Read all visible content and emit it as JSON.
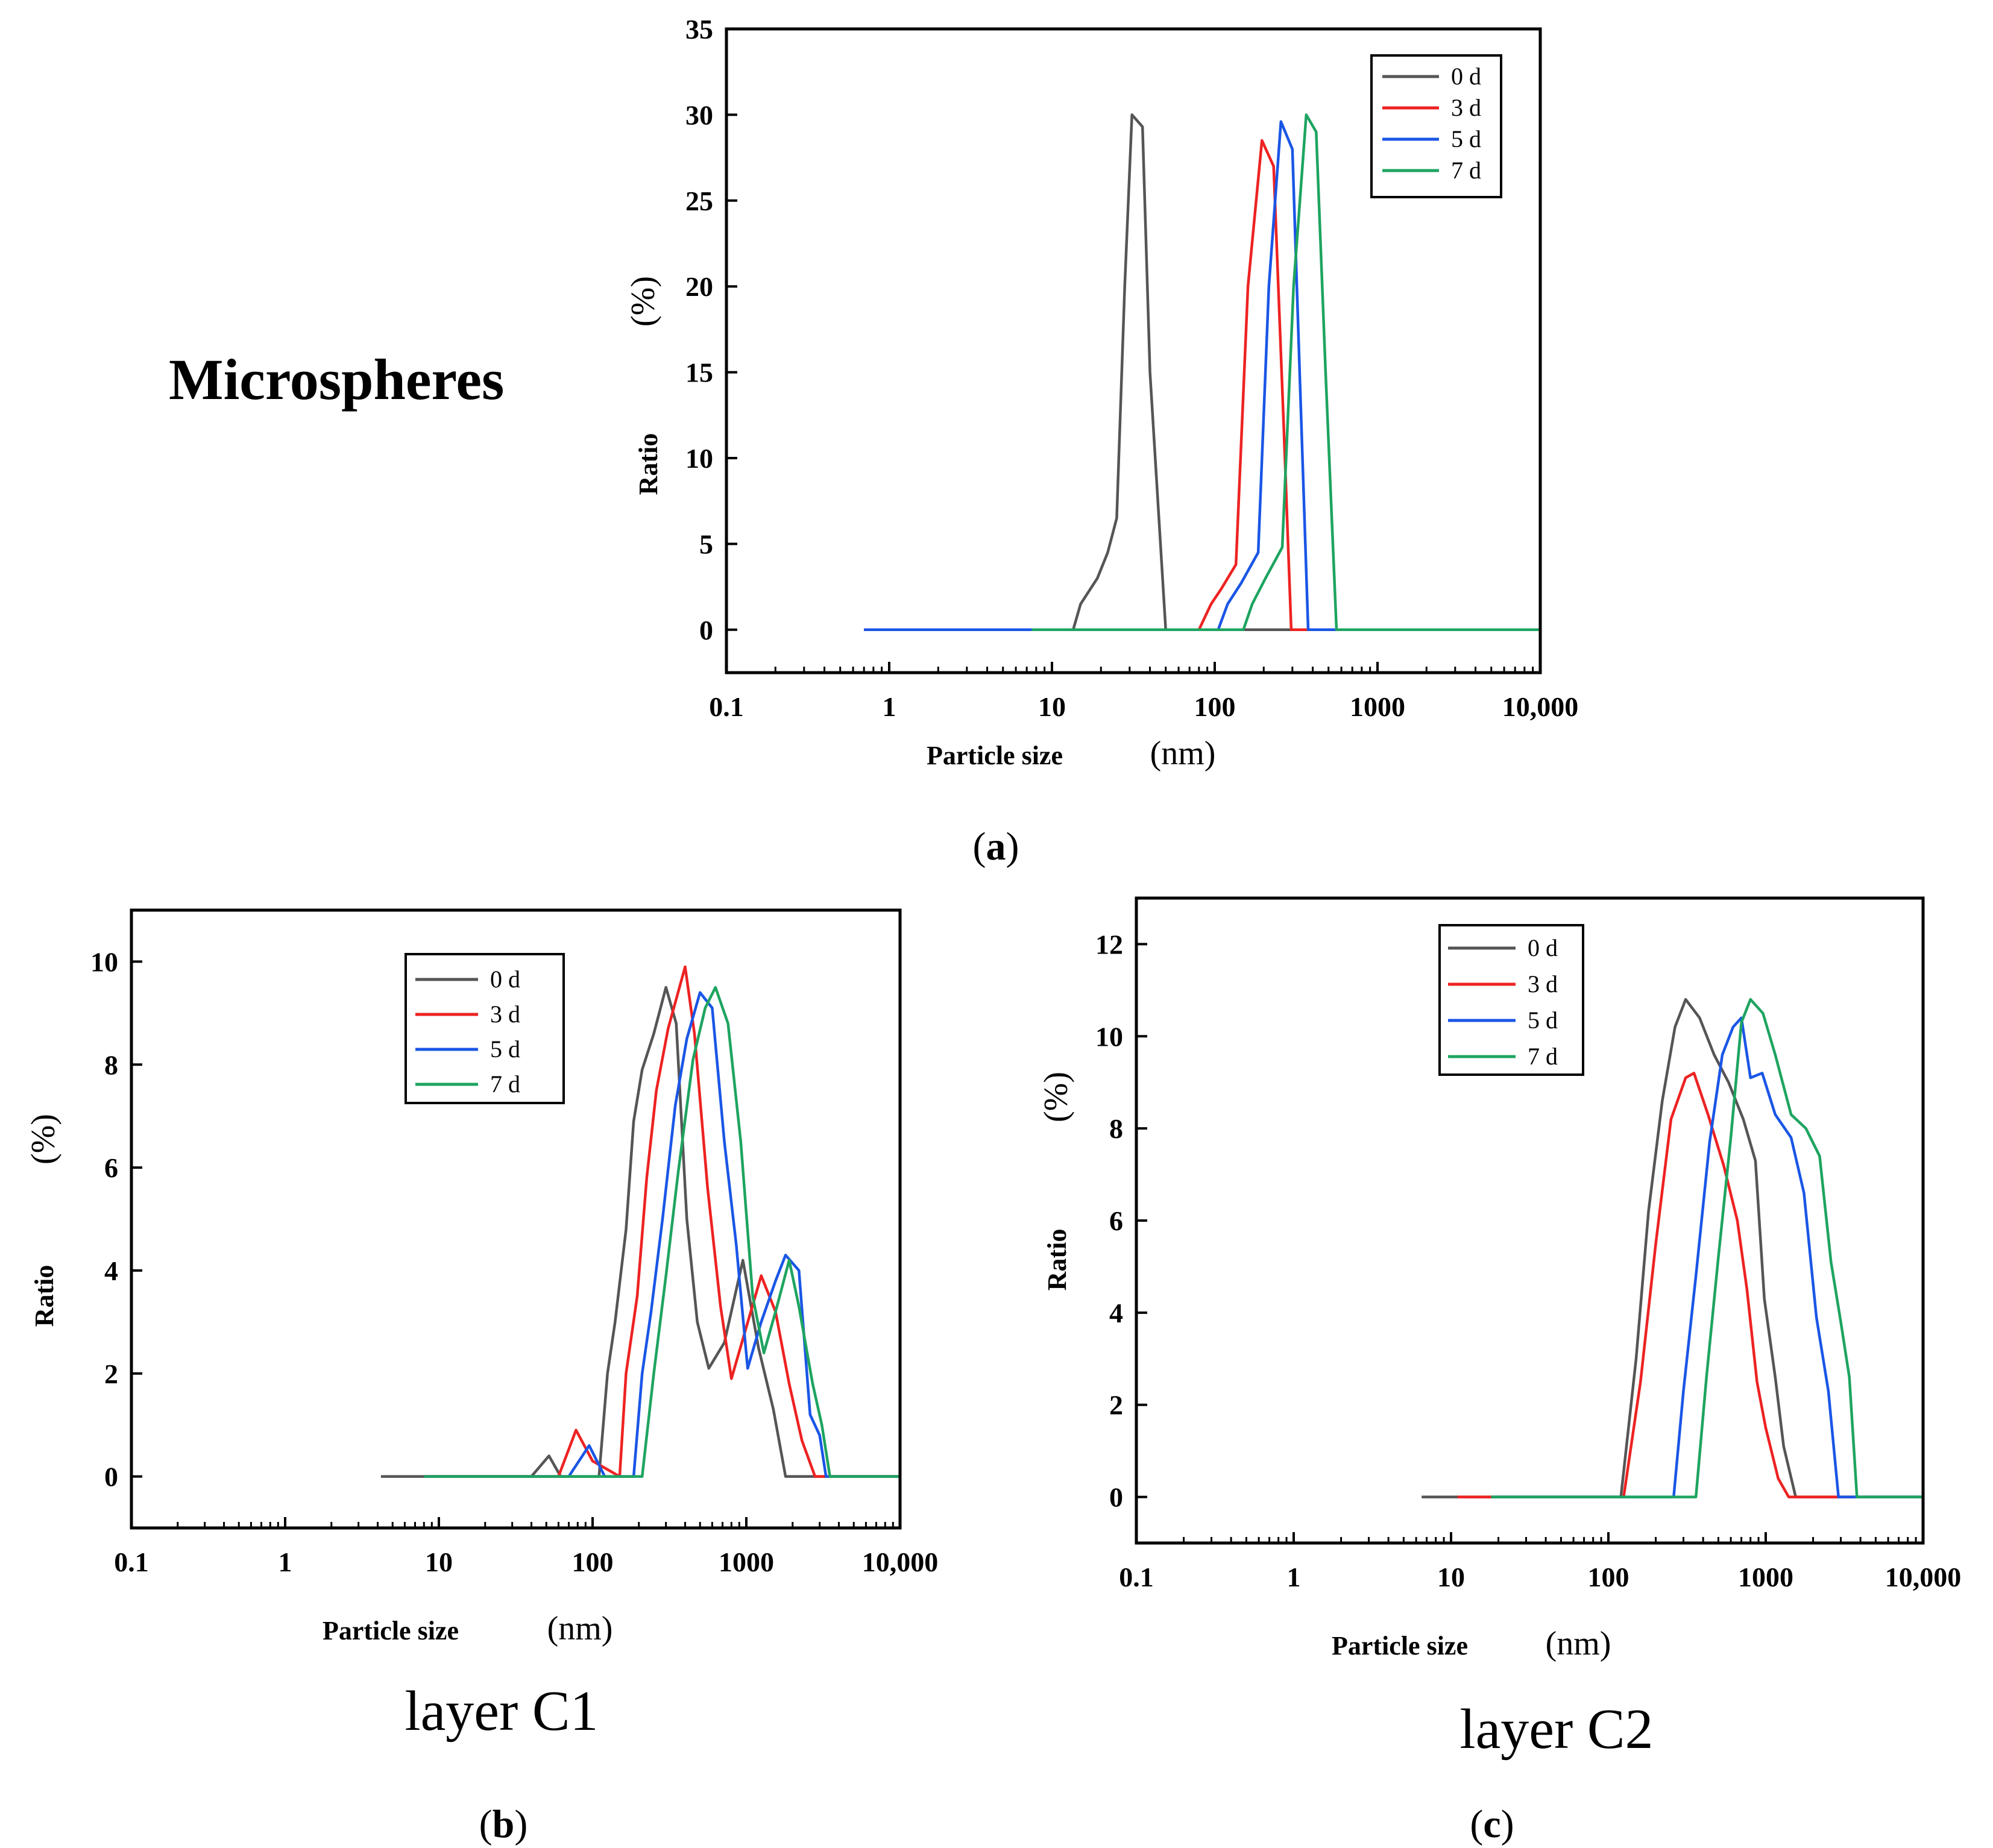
{
  "chart_data": [
    {
      "id": "a",
      "type": "line",
      "title": "Microspheres",
      "caption": "a",
      "xlabel": "Particle size",
      "xunit": "(nm)",
      "ylabel": "Ratio",
      "yunit": "(%)",
      "xscale": "log",
      "xlim": [
        0.1,
        10000
      ],
      "ylim": [
        -2.5,
        35
      ],
      "x_ticks": [
        0.1,
        1,
        10,
        100,
        1000,
        10000
      ],
      "x_tick_labels": [
        "0.1",
        "1",
        "10",
        "100",
        "1000",
        "10,000"
      ],
      "y_ticks": [
        0,
        5,
        10,
        15,
        20,
        25,
        30,
        35
      ],
      "y_tick_labels": [
        "0",
        "5",
        "10",
        "15",
        "20",
        "25",
        "30",
        "35"
      ],
      "legend_position": "top-right",
      "series": [
        {
          "name": "0 d",
          "color": "#555555",
          "points": [
            [
              0.7,
              0
            ],
            [
              13.5,
              0
            ],
            [
              15,
              1.5
            ],
            [
              19,
              3
            ],
            [
              22,
              4.5
            ],
            [
              25,
              6.5
            ],
            [
              28,
              20
            ],
            [
              31,
              30
            ],
            [
              36,
              29.3
            ],
            [
              40,
              15
            ],
            [
              50,
              0
            ],
            [
              10000,
              0
            ]
          ]
        },
        {
          "name": "3 d",
          "color": "#ee2222",
          "points": [
            [
              0.7,
              0
            ],
            [
              80,
              0
            ],
            [
              95,
              1.5
            ],
            [
              110,
              2.4
            ],
            [
              135,
              3.8
            ],
            [
              160,
              20
            ],
            [
              195,
              28.5
            ],
            [
              230,
              27
            ],
            [
              265,
              12
            ],
            [
              295,
              0
            ],
            [
              10000,
              0
            ]
          ]
        },
        {
          "name": "5 d",
          "color": "#1a56e6",
          "points": [
            [
              0.7,
              0
            ],
            [
              105,
              0
            ],
            [
              120,
              1.5
            ],
            [
              145,
              2.7
            ],
            [
              185,
              4.5
            ],
            [
              215,
              20
            ],
            [
              255,
              29.6
            ],
            [
              300,
              28
            ],
            [
              335,
              14
            ],
            [
              375,
              0
            ],
            [
              10000,
              0
            ]
          ]
        },
        {
          "name": "7 d",
          "color": "#1ea460",
          "points": [
            [
              7.5,
              0
            ],
            [
              150,
              0
            ],
            [
              170,
              1.5
            ],
            [
              205,
              3
            ],
            [
              260,
              4.8
            ],
            [
              305,
              20
            ],
            [
              365,
              30
            ],
            [
              420,
              29
            ],
            [
              480,
              15
            ],
            [
              560,
              0
            ],
            [
              10000,
              0
            ]
          ]
        }
      ]
    },
    {
      "id": "b",
      "type": "line",
      "title": "layer C1",
      "caption": "b",
      "xlabel": "Particle size",
      "xunit": "(nm)",
      "ylabel": "Ratio",
      "yunit": "(%)",
      "xscale": "log",
      "xlim": [
        0.1,
        10000
      ],
      "ylim": [
        -1,
        11
      ],
      "x_ticks": [
        0.1,
        1,
        10,
        100,
        1000,
        10000
      ],
      "x_tick_labels": [
        "0.1",
        "1",
        "10",
        "100",
        "1000",
        "10,000"
      ],
      "y_ticks": [
        0,
        2,
        4,
        6,
        8,
        10
      ],
      "y_tick_labels": [
        "0",
        "2",
        "4",
        "6",
        "8",
        "10"
      ],
      "legend_position": "top-center",
      "series": [
        {
          "name": "0 d",
          "color": "#555555",
          "points": [
            [
              4.2,
              0
            ],
            [
              40,
              0
            ],
            [
              52,
              0.4
            ],
            [
              62,
              0
            ],
            [
              110,
              0
            ],
            [
              125,
              2
            ],
            [
              140,
              3
            ],
            [
              165,
              4.8
            ],
            [
              185,
              6.9
            ],
            [
              210,
              7.9
            ],
            [
              250,
              8.6
            ],
            [
              300,
              9.5
            ],
            [
              350,
              8.8
            ],
            [
              410,
              5
            ],
            [
              480,
              3
            ],
            [
              570,
              2.1
            ],
            [
              720,
              2.6
            ],
            [
              950,
              4.2
            ],
            [
              1200,
              2.5
            ],
            [
              1500,
              1.3
            ],
            [
              1800,
              0
            ],
            [
              10000,
              0
            ]
          ]
        },
        {
          "name": "3 d",
          "color": "#ee2222",
          "points": [
            [
              8,
              0
            ],
            [
              60,
              0
            ],
            [
              78,
              0.9
            ],
            [
              100,
              0.3
            ],
            [
              150,
              0
            ],
            [
              165,
              2
            ],
            [
              195,
              3.5
            ],
            [
              225,
              5.8
            ],
            [
              260,
              7.5
            ],
            [
              310,
              8.7
            ],
            [
              400,
              9.9
            ],
            [
              460,
              8.6
            ],
            [
              560,
              5.6
            ],
            [
              680,
              3.3
            ],
            [
              800,
              1.9
            ],
            [
              1000,
              2.9
            ],
            [
              1250,
              3.9
            ],
            [
              1550,
              3.2
            ],
            [
              1900,
              1.8
            ],
            [
              2300,
              0.7
            ],
            [
              2800,
              0
            ],
            [
              10000,
              0
            ]
          ]
        },
        {
          "name": "5 d",
          "color": "#1a56e6",
          "points": [
            [
              8,
              0
            ],
            [
              70,
              0
            ],
            [
              95,
              0.6
            ],
            [
              120,
              0
            ],
            [
              185,
              0
            ],
            [
              210,
              2
            ],
            [
              240,
              3.2
            ],
            [
              285,
              5
            ],
            [
              345,
              7.2
            ],
            [
              410,
              8.5
            ],
            [
              500,
              9.4
            ],
            [
              600,
              9.1
            ],
            [
              720,
              6.5
            ],
            [
              860,
              4.5
            ],
            [
              1020,
              2.1
            ],
            [
              1250,
              3
            ],
            [
              1550,
              3.8
            ],
            [
              1800,
              4.3
            ],
            [
              2200,
              4
            ],
            [
              2600,
              1.2
            ],
            [
              3000,
              0.8
            ],
            [
              3300,
              0
            ],
            [
              10000,
              0
            ]
          ]
        },
        {
          "name": "7 d",
          "color": "#1ea460",
          "points": [
            [
              8,
              0
            ],
            [
              210,
              0
            ],
            [
              250,
              2
            ],
            [
              300,
              3.9
            ],
            [
              360,
              5.9
            ],
            [
              450,
              8.1
            ],
            [
              540,
              9.1
            ],
            [
              630,
              9.5
            ],
            [
              760,
              8.8
            ],
            [
              920,
              6.5
            ],
            [
              1100,
              3.5
            ],
            [
              1300,
              2.4
            ],
            [
              1550,
              3.2
            ],
            [
              1900,
              4.2
            ],
            [
              2200,
              3.3
            ],
            [
              2700,
              1.8
            ],
            [
              3100,
              1
            ],
            [
              3500,
              0
            ],
            [
              10000,
              0
            ]
          ]
        }
      ]
    },
    {
      "id": "c",
      "type": "line",
      "title": "layer C2",
      "caption": "c",
      "xlabel": "Particle size",
      "xunit": "(nm)",
      "ylabel": "Ratio",
      "yunit": "(%)",
      "xscale": "log",
      "xlim": [
        0.1,
        10000
      ],
      "ylim": [
        -1,
        13
      ],
      "x_ticks": [
        0.1,
        1,
        10,
        100,
        1000,
        10000
      ],
      "x_tick_labels": [
        "0.1",
        "1",
        "10",
        "100",
        "1000",
        "10,000"
      ],
      "y_ticks": [
        0,
        2,
        4,
        6,
        8,
        10,
        12
      ],
      "y_tick_labels": [
        "0",
        "2",
        "4",
        "6",
        "8",
        "10",
        "12"
      ],
      "legend_position": "top-center",
      "series": [
        {
          "name": "0 d",
          "color": "#555555",
          "points": [
            [
              6.5,
              0
            ],
            [
              120,
              0
            ],
            [
              150,
              3
            ],
            [
              180,
              6.2
            ],
            [
              220,
              8.6
            ],
            [
              265,
              10.2
            ],
            [
              310,
              10.8
            ],
            [
              380,
              10.4
            ],
            [
              470,
              9.6
            ],
            [
              580,
              9
            ],
            [
              720,
              8.2
            ],
            [
              860,
              7.3
            ],
            [
              980,
              4.3
            ],
            [
              1150,
              2.6
            ],
            [
              1300,
              1.1
            ],
            [
              1550,
              0
            ],
            [
              10000,
              0
            ]
          ]
        },
        {
          "name": "3 d",
          "color": "#ee2222",
          "points": [
            [
              11,
              0
            ],
            [
              125,
              0
            ],
            [
              160,
              2.5
            ],
            [
              200,
              5.5
            ],
            [
              250,
              8.2
            ],
            [
              310,
              9.1
            ],
            [
              350,
              9.2
            ],
            [
              430,
              8.3
            ],
            [
              540,
              7.2
            ],
            [
              660,
              6
            ],
            [
              760,
              4.5
            ],
            [
              880,
              2.5
            ],
            [
              1000,
              1.5
            ],
            [
              1200,
              0.4
            ],
            [
              1400,
              0
            ],
            [
              10000,
              0
            ]
          ]
        },
        {
          "name": "5 d",
          "color": "#1a56e6",
          "points": [
            [
              18,
              0
            ],
            [
              260,
              0
            ],
            [
              300,
              2.3
            ],
            [
              360,
              4.8
            ],
            [
              440,
              7.7
            ],
            [
              530,
              9.6
            ],
            [
              620,
              10.2
            ],
            [
              700,
              10.4
            ],
            [
              800,
              9.1
            ],
            [
              950,
              9.2
            ],
            [
              1150,
              8.3
            ],
            [
              1450,
              7.8
            ],
            [
              1750,
              6.6
            ],
            [
              2100,
              3.9
            ],
            [
              2500,
              2.3
            ],
            [
              2900,
              0
            ],
            [
              10000,
              0
            ]
          ]
        },
        {
          "name": "7 d",
          "color": "#1ea460",
          "points": [
            [
              18,
              0
            ],
            [
              360,
              0
            ],
            [
              420,
              2.6
            ],
            [
              500,
              5.2
            ],
            [
              600,
              7.8
            ],
            [
              700,
              10.3
            ],
            [
              800,
              10.8
            ],
            [
              960,
              10.5
            ],
            [
              1150,
              9.6
            ],
            [
              1450,
              8.3
            ],
            [
              1800,
              8
            ],
            [
              2200,
              7.4
            ],
            [
              2600,
              5.1
            ],
            [
              3000,
              3.8
            ],
            [
              3400,
              2.6
            ],
            [
              3800,
              0
            ],
            [
              10000,
              0
            ]
          ]
        }
      ]
    }
  ]
}
